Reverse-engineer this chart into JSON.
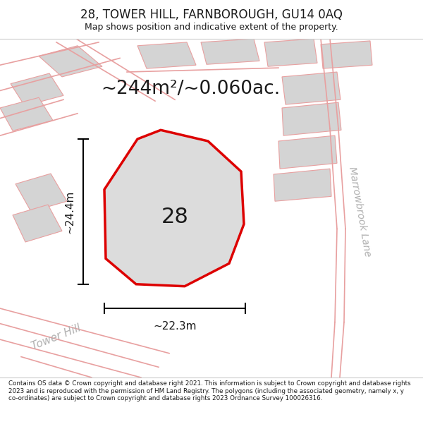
{
  "title": "28, TOWER HILL, FARNBOROUGH, GU14 0AQ",
  "subtitle": "Map shows position and indicative extent of the property.",
  "area_text": "~244m²/~0.060ac.",
  "dim_width": "~22.3m",
  "dim_height": "~24.4m",
  "number_label": "28",
  "footer": "Contains OS data © Crown copyright and database right 2021. This information is subject to Crown copyright and database rights 2023 and is reproduced with the permission of HM Land Registry. The polygons (including the associated geometry, namely x, y co-ordinates) are subject to Crown copyright and database rights 2023 Ordnance Survey 100026316.",
  "bg_color": "#eeece8",
  "plot_outline_color": "#e8a0a0",
  "highlight_outline": "#dd0000",
  "text_color": "#1a1a1a",
  "white_bg": "#ffffff",
  "neighbor_fill": "#d4d4d4",
  "prop_fill": "#dcdcdc"
}
